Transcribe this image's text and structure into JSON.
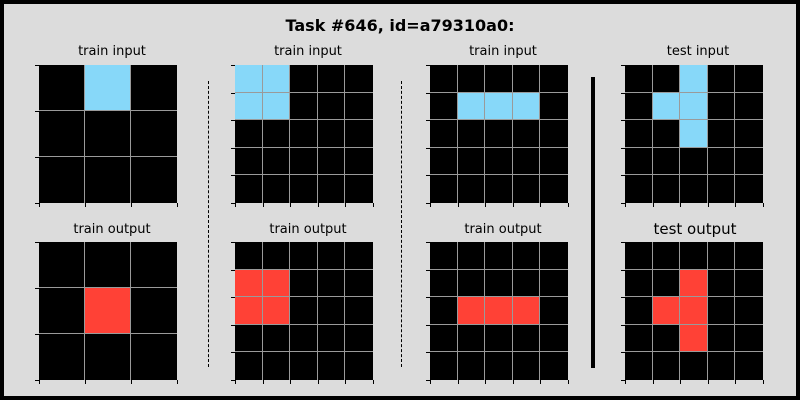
{
  "title": "Task #646, id=a79310a0:",
  "colors": {
    "0": "#000000",
    "8": "#87d8f9",
    "2": "#ff4136",
    "background": "#dcdcdc",
    "gridline": "#9a9a9a"
  },
  "panels": [
    {
      "label": "train input",
      "grid": [
        [
          0,
          8,
          0
        ],
        [
          0,
          0,
          0
        ],
        [
          0,
          0,
          0
        ]
      ]
    },
    {
      "label": "train input",
      "grid": [
        [
          8,
          8,
          0,
          0,
          0
        ],
        [
          8,
          8,
          0,
          0,
          0
        ],
        [
          0,
          0,
          0,
          0,
          0
        ],
        [
          0,
          0,
          0,
          0,
          0
        ],
        [
          0,
          0,
          0,
          0,
          0
        ]
      ]
    },
    {
      "label": "train input",
      "grid": [
        [
          0,
          0,
          0,
          0,
          0
        ],
        [
          0,
          8,
          8,
          8,
          0
        ],
        [
          0,
          0,
          0,
          0,
          0
        ],
        [
          0,
          0,
          0,
          0,
          0
        ],
        [
          0,
          0,
          0,
          0,
          0
        ]
      ]
    },
    {
      "label": "test input",
      "grid": [
        [
          0,
          0,
          8,
          0,
          0
        ],
        [
          0,
          8,
          8,
          0,
          0
        ],
        [
          0,
          0,
          8,
          0,
          0
        ],
        [
          0,
          0,
          0,
          0,
          0
        ],
        [
          0,
          0,
          0,
          0,
          0
        ]
      ]
    },
    {
      "label": "train output",
      "grid": [
        [
          0,
          0,
          0
        ],
        [
          0,
          2,
          0
        ],
        [
          0,
          0,
          0
        ]
      ]
    },
    {
      "label": "train output",
      "grid": [
        [
          0,
          0,
          0,
          0,
          0
        ],
        [
          2,
          2,
          0,
          0,
          0
        ],
        [
          2,
          2,
          0,
          0,
          0
        ],
        [
          0,
          0,
          0,
          0,
          0
        ],
        [
          0,
          0,
          0,
          0,
          0
        ]
      ]
    },
    {
      "label": "train output",
      "grid": [
        [
          0,
          0,
          0,
          0,
          0
        ],
        [
          0,
          0,
          0,
          0,
          0
        ],
        [
          0,
          2,
          2,
          2,
          0
        ],
        [
          0,
          0,
          0,
          0,
          0
        ],
        [
          0,
          0,
          0,
          0,
          0
        ]
      ]
    },
    {
      "label": "test output",
      "grid": [
        [
          0,
          0,
          0,
          0,
          0
        ],
        [
          0,
          0,
          2,
          0,
          0
        ],
        [
          0,
          2,
          2,
          0,
          0
        ],
        [
          0,
          0,
          2,
          0,
          0
        ],
        [
          0,
          0,
          0,
          0,
          0
        ]
      ]
    }
  ]
}
